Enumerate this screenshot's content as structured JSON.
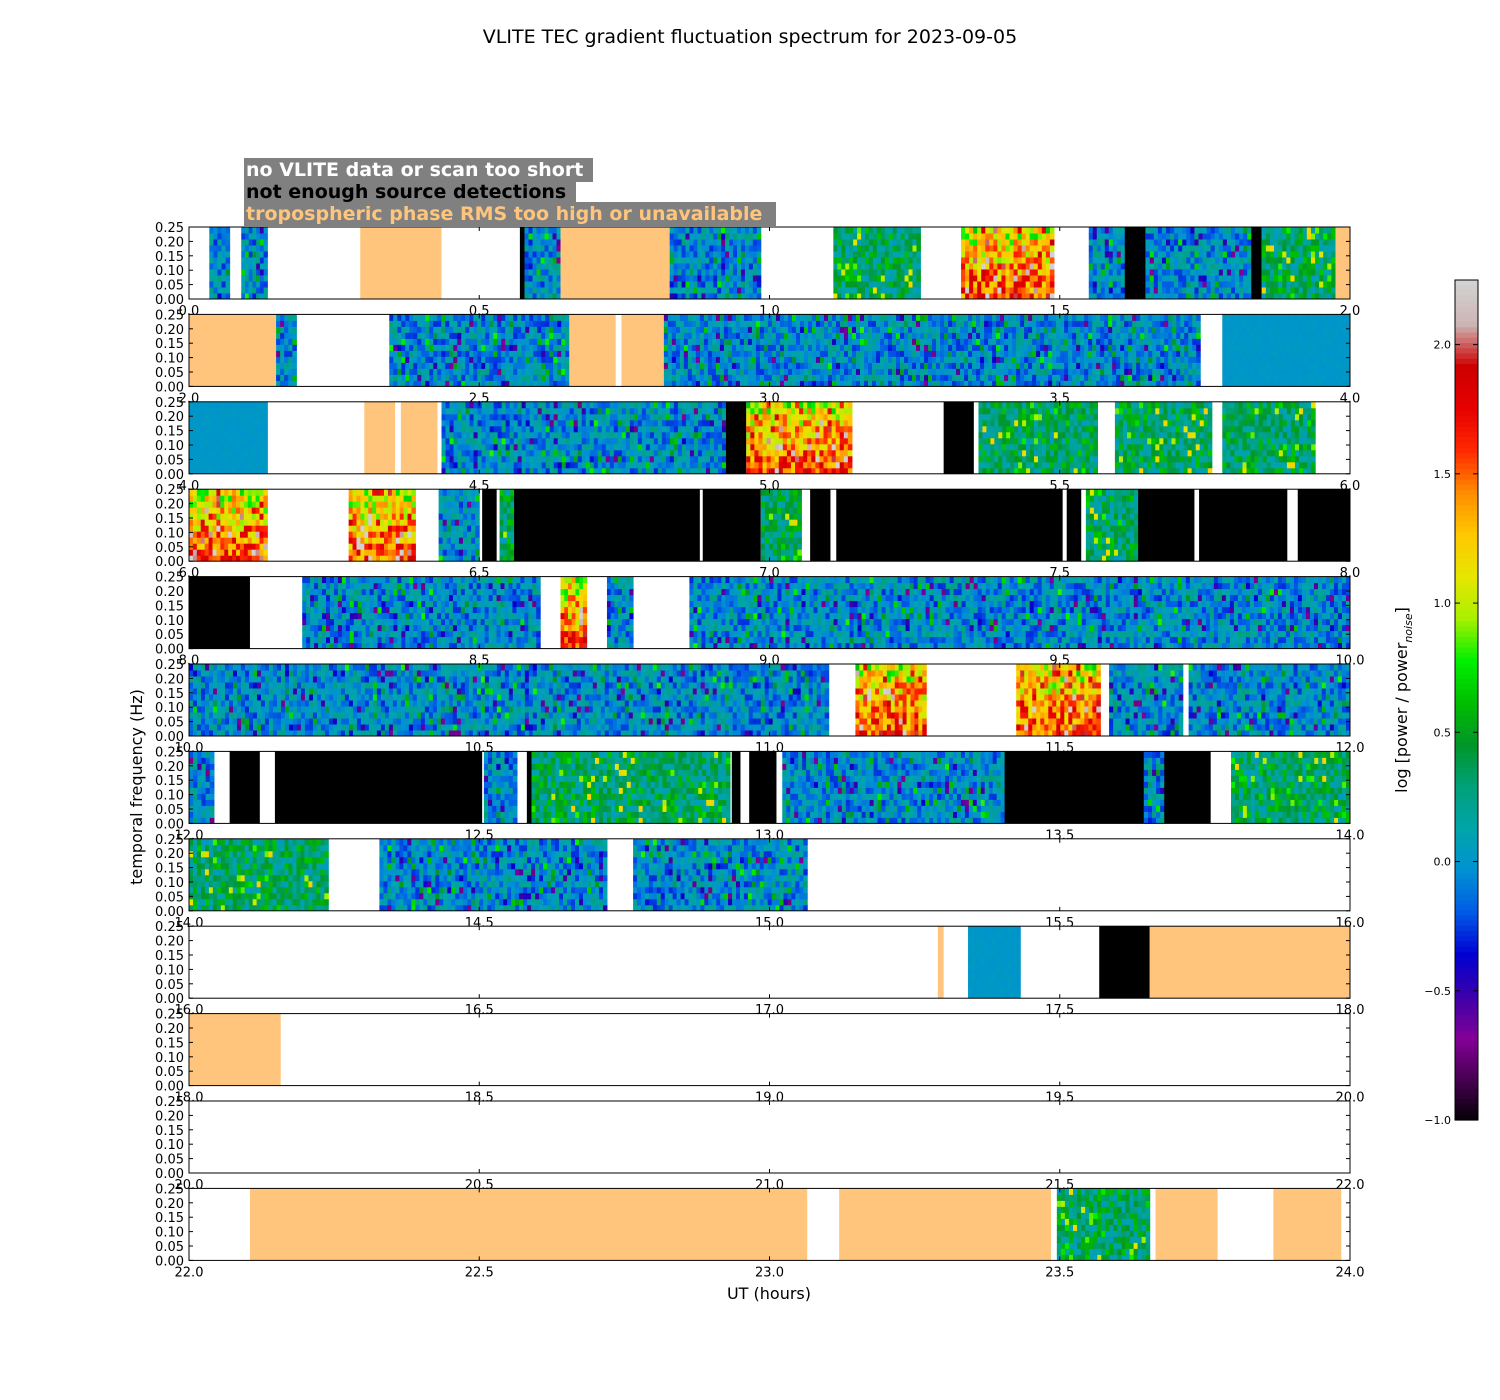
{
  "title": "VLITE TEC gradient fluctuation spectrum for 2023-09-05",
  "legend": [
    {
      "text": "no VLITE data or scan too short",
      "color": "#ffffff"
    },
    {
      "text": "not enough source detections",
      "color": "#000000"
    },
    {
      "text": "tropospheric phase RMS too high or unavailable",
      "color": "#ffc57c"
    }
  ],
  "legend_background": "#808080",
  "colors": {
    "no_data": "#ffffff",
    "no_detections": "#000000",
    "tropo_flag": "#ffc57c",
    "frame": "#000000"
  },
  "colorbar": {
    "label": "log [power / power",
    "label_subscript": "noise",
    "label_end": "]",
    "ticks": [
      "2.0",
      "1.5",
      "1.0",
      "0.5",
      "0.0",
      "−0.5",
      "−1.0"
    ],
    "tick_values": [
      2.0,
      1.5,
      1.0,
      0.5,
      0.0,
      -0.5,
      -1.0
    ],
    "vmin": -1.0,
    "vmax": 2.25,
    "colormap": "nipy_spectral"
  },
  "chart_data": {
    "type": "heatmap",
    "xlabel": "UT (hours)",
    "ylabel": "temporal frequency (Hz)",
    "ylim": [
      0,
      0.25
    ],
    "yticks": [
      "0.00",
      "0.05",
      "0.10",
      "0.15",
      "0.20",
      "0.25"
    ],
    "panels": [
      {
        "xlim": [
          0,
          2
        ],
        "xticks": [
          "0.0",
          "0.5",
          "1.0",
          "1.5",
          "2.0"
        ],
        "segments": [
          {
            "t0": 0.035,
            "t1": 0.07,
            "kind": "data",
            "level": "low"
          },
          {
            "t0": 0.09,
            "t1": 0.135,
            "kind": "data",
            "level": "low"
          },
          {
            "t0": 0.295,
            "t1": 0.435,
            "kind": "tropo"
          },
          {
            "t0": 0.57,
            "t1": 0.578,
            "kind": "nodet"
          },
          {
            "t0": 0.578,
            "t1": 0.64,
            "kind": "data",
            "level": "low"
          },
          {
            "t0": 0.64,
            "t1": 0.828,
            "kind": "tropo"
          },
          {
            "t0": 0.828,
            "t1": 0.985,
            "kind": "data",
            "level": "low"
          },
          {
            "t0": 1.11,
            "t1": 1.26,
            "kind": "data",
            "level": "mid"
          },
          {
            "t0": 1.33,
            "t1": 1.49,
            "kind": "data",
            "level": "high"
          },
          {
            "t0": 1.55,
            "t1": 1.612,
            "kind": "data",
            "level": "low"
          },
          {
            "t0": 1.612,
            "t1": 1.648,
            "kind": "nodet"
          },
          {
            "t0": 1.648,
            "t1": 1.83,
            "kind": "data",
            "level": "low"
          },
          {
            "t0": 1.83,
            "t1": 1.848,
            "kind": "nodet"
          },
          {
            "t0": 1.848,
            "t1": 1.975,
            "kind": "data",
            "level": "mid"
          },
          {
            "t0": 1.975,
            "t1": 2.0,
            "kind": "tropo"
          }
        ]
      },
      {
        "xlim": [
          2,
          4
        ],
        "xticks": [
          "2.0",
          "2.5",
          "3.0",
          "3.5",
          "4.0"
        ],
        "segments": [
          {
            "t0": 2.0,
            "t1": 2.15,
            "kind": "tropo"
          },
          {
            "t0": 2.15,
            "t1": 2.185,
            "kind": "data",
            "level": "low"
          },
          {
            "t0": 2.345,
            "t1": 2.655,
            "kind": "data",
            "level": "low"
          },
          {
            "t0": 2.655,
            "t1": 2.735,
            "kind": "tropo"
          },
          {
            "t0": 2.745,
            "t1": 2.818,
            "kind": "tropo"
          },
          {
            "t0": 2.818,
            "t1": 3.742,
            "kind": "data",
            "level": "low"
          },
          {
            "t0": 3.78,
            "t1": 4.0,
            "kind": "data",
            "level": "flat"
          }
        ]
      },
      {
        "xlim": [
          4,
          6
        ],
        "xticks": [
          "4.0",
          "4.5",
          "5.0",
          "5.5",
          "6.0"
        ],
        "segments": [
          {
            "t0": 4.0,
            "t1": 4.135,
            "kind": "data",
            "level": "flat"
          },
          {
            "t0": 4.302,
            "t1": 4.355,
            "kind": "tropo"
          },
          {
            "t0": 4.365,
            "t1": 4.428,
            "kind": "tropo"
          },
          {
            "t0": 4.435,
            "t1": 4.925,
            "kind": "data",
            "level": "low"
          },
          {
            "t0": 4.925,
            "t1": 4.96,
            "kind": "nodet"
          },
          {
            "t0": 4.96,
            "t1": 5.142,
            "kind": "data",
            "level": "high"
          },
          {
            "t0": 5.3,
            "t1": 5.352,
            "kind": "nodet"
          },
          {
            "t0": 5.36,
            "t1": 5.565,
            "kind": "data",
            "level": "mid"
          },
          {
            "t0": 5.595,
            "t1": 5.762,
            "kind": "data",
            "level": "mid"
          },
          {
            "t0": 5.78,
            "t1": 5.94,
            "kind": "data",
            "level": "mid"
          }
        ]
      },
      {
        "xlim": [
          6,
          8
        ],
        "xticks": [
          "6.0",
          "6.5",
          "7.0",
          "7.5",
          "8.0"
        ],
        "segments": [
          {
            "t0": 6.0,
            "t1": 6.135,
            "kind": "data",
            "level": "high"
          },
          {
            "t0": 6.275,
            "t1": 6.39,
            "kind": "data",
            "level": "high"
          },
          {
            "t0": 6.43,
            "t1": 6.5,
            "kind": "data",
            "level": "low"
          },
          {
            "t0": 6.505,
            "t1": 6.53,
            "kind": "nodet"
          },
          {
            "t0": 6.535,
            "t1": 6.56,
            "kind": "data",
            "level": "mid"
          },
          {
            "t0": 6.56,
            "t1": 6.88,
            "kind": "nodet"
          },
          {
            "t0": 6.885,
            "t1": 6.985,
            "kind": "nodet"
          },
          {
            "t0": 6.985,
            "t1": 7.055,
            "kind": "data",
            "level": "mid"
          },
          {
            "t0": 7.07,
            "t1": 7.105,
            "kind": "nodet"
          },
          {
            "t0": 7.115,
            "t1": 7.505,
            "kind": "nodet"
          },
          {
            "t0": 7.512,
            "t1": 7.537,
            "kind": "nodet"
          },
          {
            "t0": 7.545,
            "t1": 7.635,
            "kind": "data",
            "level": "mid"
          },
          {
            "t0": 7.635,
            "t1": 7.732,
            "kind": "nodet"
          },
          {
            "t0": 7.74,
            "t1": 7.892,
            "kind": "nodet"
          },
          {
            "t0": 7.91,
            "t1": 8.0,
            "kind": "nodet"
          }
        ]
      },
      {
        "xlim": [
          8,
          10
        ],
        "xticks": [
          "8.0",
          "8.5",
          "9.0",
          "9.5",
          "10.0"
        ],
        "segments": [
          {
            "t0": 8.0,
            "t1": 8.105,
            "kind": "nodet"
          },
          {
            "t0": 8.195,
            "t1": 8.605,
            "kind": "data",
            "level": "low"
          },
          {
            "t0": 8.64,
            "t1": 8.685,
            "kind": "data",
            "level": "high"
          },
          {
            "t0": 8.72,
            "t1": 8.765,
            "kind": "data",
            "level": "low"
          },
          {
            "t0": 8.862,
            "t1": 10.0,
            "kind": "data",
            "level": "low"
          }
        ]
      },
      {
        "xlim": [
          10,
          12
        ],
        "xticks": [
          "10.0",
          "10.5",
          "11.0",
          "11.5",
          "12.0"
        ],
        "segments": [
          {
            "t0": 10.0,
            "t1": 11.102,
            "kind": "data",
            "level": "low"
          },
          {
            "t0": 11.148,
            "t1": 11.27,
            "kind": "data",
            "level": "high"
          },
          {
            "t0": 11.425,
            "t1": 11.57,
            "kind": "data",
            "level": "high"
          },
          {
            "t0": 11.585,
            "t1": 11.712,
            "kind": "data",
            "level": "low"
          },
          {
            "t0": 11.722,
            "t1": 12.0,
            "kind": "data",
            "level": "low"
          }
        ]
      },
      {
        "xlim": [
          12,
          14
        ],
        "xticks": [
          "12.0",
          "12.5",
          "13.0",
          "13.5",
          "14.0"
        ],
        "segments": [
          {
            "t0": 12.0,
            "t1": 12.043,
            "kind": "data",
            "level": "low"
          },
          {
            "t0": 12.07,
            "t1": 12.122,
            "kind": "nodet"
          },
          {
            "t0": 12.148,
            "t1": 12.505,
            "kind": "nodet"
          },
          {
            "t0": 12.508,
            "t1": 12.565,
            "kind": "data",
            "level": "low"
          },
          {
            "t0": 12.582,
            "t1": 12.59,
            "kind": "nodet"
          },
          {
            "t0": 12.59,
            "t1": 12.932,
            "kind": "data",
            "level": "mid"
          },
          {
            "t0": 12.935,
            "t1": 12.95,
            "kind": "nodet"
          },
          {
            "t0": 12.965,
            "t1": 13.012,
            "kind": "nodet"
          },
          {
            "t0": 13.022,
            "t1": 13.405,
            "kind": "data",
            "level": "low"
          },
          {
            "t0": 13.405,
            "t1": 13.645,
            "kind": "nodet"
          },
          {
            "t0": 13.645,
            "t1": 13.68,
            "kind": "data",
            "level": "low"
          },
          {
            "t0": 13.68,
            "t1": 13.76,
            "kind": "nodet"
          },
          {
            "t0": 13.795,
            "t1": 14.0,
            "kind": "data",
            "level": "mid"
          }
        ]
      },
      {
        "xlim": [
          14,
          16
        ],
        "xticks": [
          "14.0",
          "14.5",
          "15.0",
          "15.5",
          "16.0"
        ],
        "segments": [
          {
            "t0": 14.0,
            "t1": 14.24,
            "kind": "data",
            "level": "mid"
          },
          {
            "t0": 14.328,
            "t1": 14.72,
            "kind": "data",
            "level": "low"
          },
          {
            "t0": 14.765,
            "t1": 15.065,
            "kind": "data",
            "level": "low"
          }
        ]
      },
      {
        "xlim": [
          16,
          18
        ],
        "xticks": [
          "16.0",
          "16.5",
          "17.0",
          "17.5",
          "18.0"
        ],
        "segments": [
          {
            "t0": 17.29,
            "t1": 17.3,
            "kind": "tropo"
          },
          {
            "t0": 17.342,
            "t1": 17.432,
            "kind": "data",
            "level": "flat"
          },
          {
            "t0": 17.568,
            "t1": 17.655,
            "kind": "nodet"
          },
          {
            "t0": 17.655,
            "t1": 18.0,
            "kind": "tropo"
          }
        ]
      },
      {
        "xlim": [
          18,
          20
        ],
        "xticks": [
          "18.0",
          "18.5",
          "19.0",
          "19.5",
          "20.0"
        ],
        "segments": [
          {
            "t0": 18.0,
            "t1": 18.158,
            "kind": "tropo"
          }
        ]
      },
      {
        "xlim": [
          20,
          22
        ],
        "xticks": [
          "20.0",
          "20.5",
          "21.0",
          "21.5",
          "22.0"
        ],
        "segments": []
      },
      {
        "xlim": [
          22,
          24
        ],
        "xticks": [
          "22.0",
          "22.5",
          "23.0",
          "23.5",
          "24.0"
        ],
        "segments": [
          {
            "t0": 22.105,
            "t1": 23.065,
            "kind": "tropo"
          },
          {
            "t0": 23.12,
            "t1": 23.485,
            "kind": "tropo"
          },
          {
            "t0": 23.495,
            "t1": 23.655,
            "kind": "data",
            "level": "mid"
          },
          {
            "t0": 23.665,
            "t1": 23.772,
            "kind": "tropo"
          },
          {
            "t0": 23.868,
            "t1": 23.985,
            "kind": "tropo"
          }
        ]
      }
    ]
  }
}
